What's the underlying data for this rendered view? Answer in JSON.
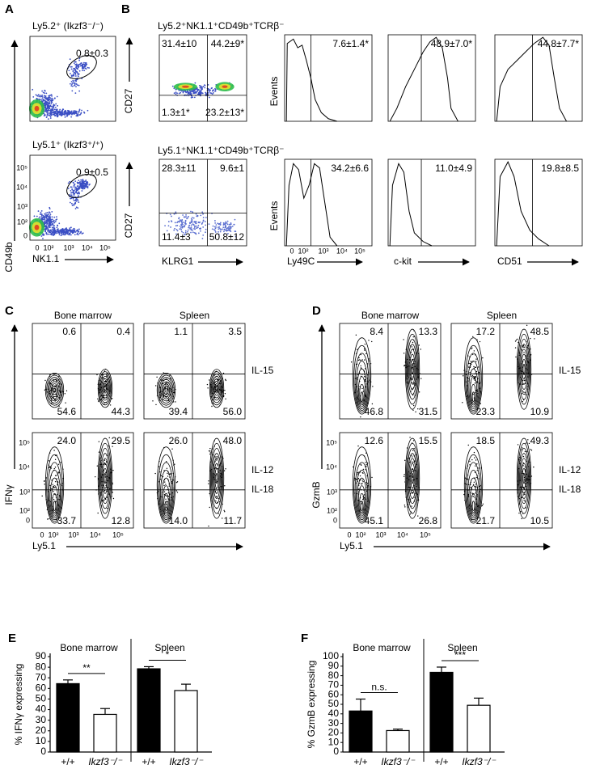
{
  "panel_a": {
    "label": "A",
    "plots": [
      {
        "title": "Ly5.2⁺ (Ikzf3⁻/⁻)",
        "gate": "0.8±0.3"
      },
      {
        "title": "Ly5.1⁺ (Ikzf3⁺/⁺)",
        "gate": "0.9±0.5"
      }
    ],
    "y_label": "CD49b",
    "x_label": "NK1.1",
    "y_ticks": [
      "10⁵",
      "10⁴",
      "10³",
      "10²",
      "0"
    ],
    "x_ticks": [
      "0",
      "10²",
      "10³",
      "10⁴",
      "10⁵"
    ]
  },
  "panel_b": {
    "label": "B",
    "rows": [
      {
        "title": "Ly5.2⁺NK1.1⁺CD49b⁺TCRβ⁻",
        "quadrants": [
          "31.4±10",
          "44.2±9*",
          "1.3±1*",
          "23.2±13*"
        ],
        "histograms": [
          "7.6±1.4*",
          "48.9±7.0*",
          "44.8±7.7*"
        ]
      },
      {
        "title": "Ly5.1⁺NK1.1⁺CD49b⁺TCRβ⁻",
        "quadrants": [
          "28.3±11",
          "9.6±1",
          "11.4±3",
          "50.8±12"
        ],
        "histograms": [
          "34.2±6.6",
          "11.0±4.9",
          "19.8±8.5"
        ]
      }
    ],
    "dot_y_label": "CD27",
    "hist_y_label": "Events",
    "x_labels": [
      "KLRG1",
      "Ly49C",
      "c-kit",
      "CD51"
    ],
    "x_ticks": [
      "0",
      "10²",
      "10³",
      "10⁴",
      "10⁵"
    ]
  },
  "panel_c": {
    "label": "C",
    "columns": [
      "Bone marrow",
      "Spleen"
    ],
    "rows": [
      {
        "stimulus": [
          "IL-15"
        ],
        "quadrants": [
          [
            "0.6",
            "0.4",
            "54.6",
            "44.3"
          ],
          [
            "1.1",
            "3.5",
            "39.4",
            "56.0"
          ]
        ]
      },
      {
        "stimulus": [
          "IL-12",
          "IL-18"
        ],
        "quadrants": [
          [
            "24.0",
            "29.5",
            "33.7",
            "12.8"
          ],
          [
            "26.0",
            "48.0",
            "14.0",
            "11.7"
          ]
        ]
      }
    ],
    "y_label": "IFNγ",
    "x_label": "Ly5.1",
    "y_ticks": [
      "10⁵",
      "10⁴",
      "10³",
      "10²",
      "0"
    ],
    "x_ticks": [
      "0",
      "10²",
      "10³",
      "10⁴",
      "10⁵"
    ]
  },
  "panel_d": {
    "label": "D",
    "columns": [
      "Bone marrow",
      "Spleen"
    ],
    "rows": [
      {
        "stimulus": [
          "IL-15"
        ],
        "quadrants": [
          [
            "8.4",
            "13.3",
            "46.8",
            "31.5"
          ],
          [
            "17.2",
            "48.5",
            "23.3",
            "10.9"
          ]
        ]
      },
      {
        "stimulus": [
          "IL-12",
          "IL-18"
        ],
        "quadrants": [
          [
            "12.6",
            "15.5",
            "45.1",
            "26.8"
          ],
          [
            "18.5",
            "49.3",
            "21.7",
            "10.5"
          ]
        ]
      }
    ],
    "y_label": "GzmB",
    "x_label": "Ly5.1",
    "y_ticks": [
      "10⁵",
      "10⁴",
      "10³",
      "10²",
      "0"
    ],
    "x_ticks": [
      "0",
      "10²",
      "10³",
      "10⁴",
      "10⁵"
    ]
  },
  "chart_data": [
    {
      "type": "bar",
      "label": "E",
      "groups": [
        "Bone marrow",
        "Spleen"
      ],
      "categories": [
        "+/+",
        "Ikzf3⁻/⁻",
        "+/+",
        "Ikzf3⁻/⁻"
      ],
      "y_label": "% IFNγ expressing",
      "values": [
        64.5,
        35.5,
        78.5,
        58
      ],
      "errors": [
        3.5,
        5.5,
        2,
        6
      ],
      "colors": [
        "#000000",
        "#ffffff",
        "#000000",
        "#ffffff"
      ],
      "significance": [
        "**",
        "*"
      ],
      "ylim": [
        0,
        90
      ],
      "yticks": [
        0,
        10,
        20,
        30,
        40,
        50,
        60,
        70,
        80,
        90
      ]
    },
    {
      "type": "bar",
      "label": "F",
      "groups": [
        "Bone marrow",
        "Spleen"
      ],
      "categories": [
        "+/+",
        "Ikzf3⁻/⁻",
        "+/+",
        "Ikzf3⁻/⁻"
      ],
      "y_label": "% GzmB expressing",
      "values": [
        43,
        22.5,
        83.5,
        49
      ],
      "errors": [
        12.5,
        1.5,
        5.5,
        7.5
      ],
      "colors": [
        "#000000",
        "#ffffff",
        "#000000",
        "#ffffff"
      ],
      "significance": [
        "n.s.",
        "***"
      ],
      "ylim": [
        0,
        100
      ],
      "yticks": [
        0,
        10,
        20,
        30,
        40,
        50,
        60,
        70,
        80,
        90,
        100
      ]
    }
  ]
}
